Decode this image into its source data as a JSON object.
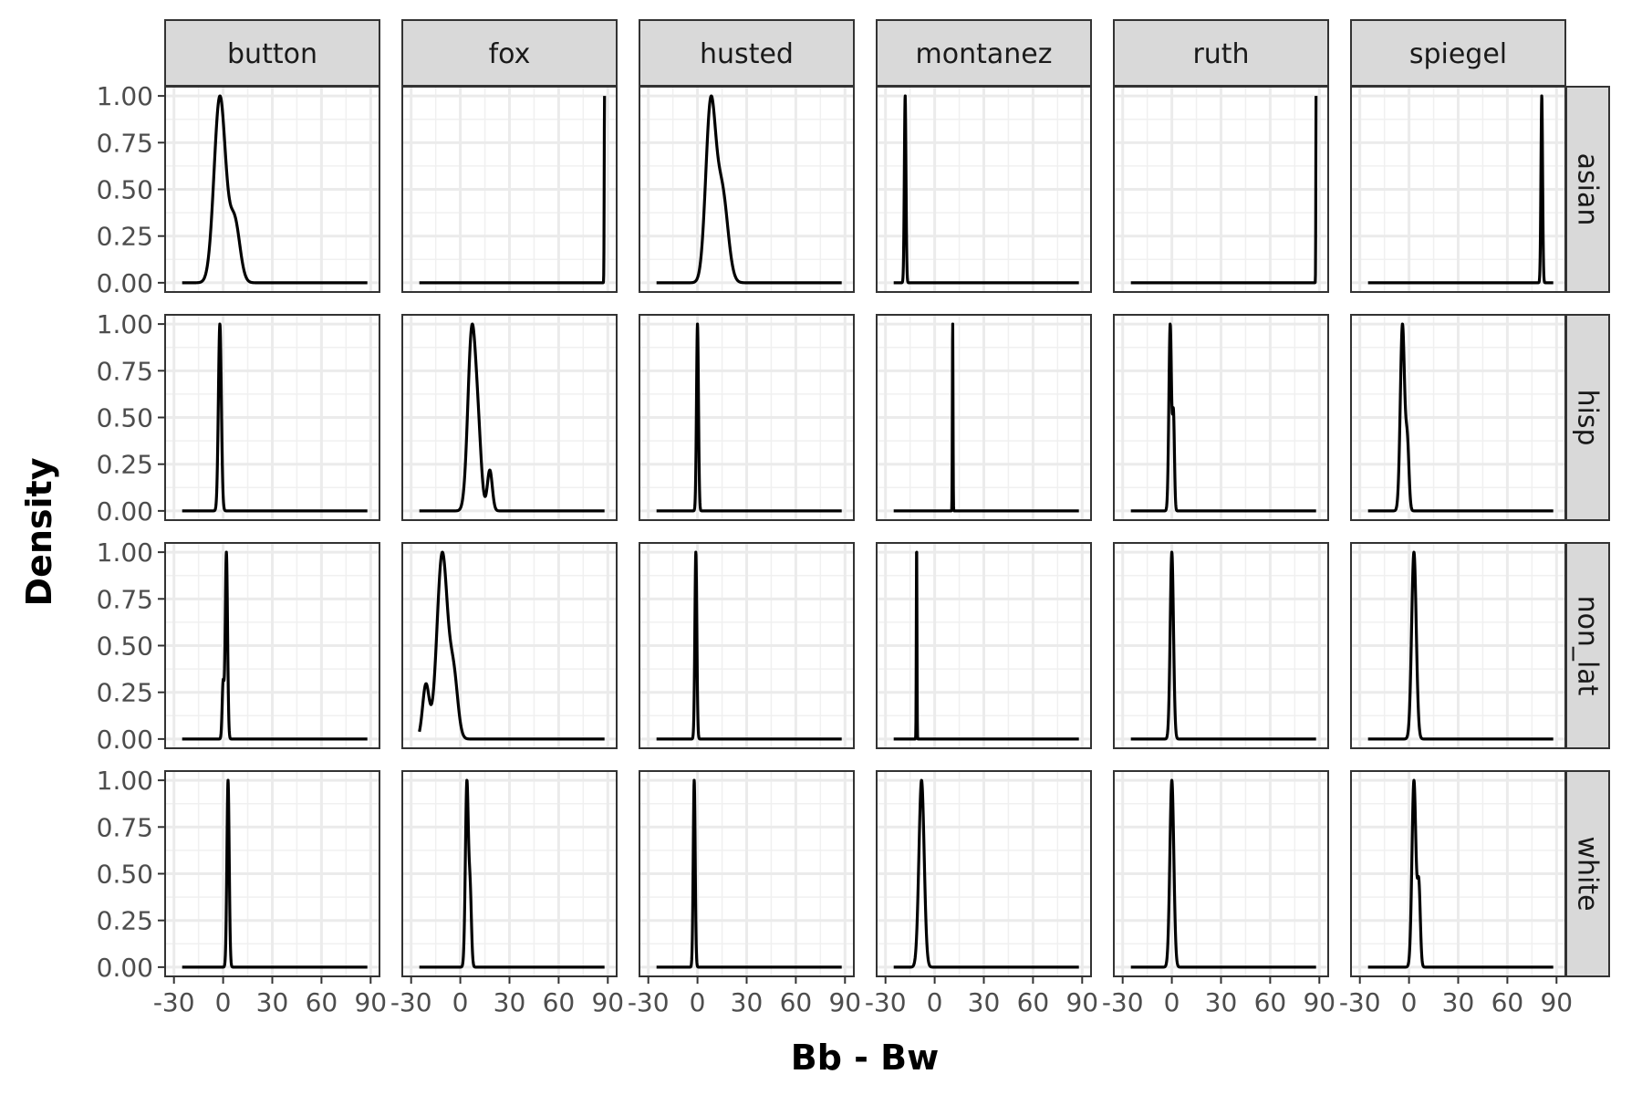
{
  "chart_data": {
    "type": "line",
    "facet_layout": "grid",
    "xlabel": "Bb - Bw",
    "ylabel": "Density",
    "x_ticks": [
      -30,
      0,
      30,
      60,
      90
    ],
    "x_tick_labels": [
      "-30",
      "0",
      "30",
      "60",
      "90"
    ],
    "y_ticks": [
      0,
      0.25,
      0.5,
      0.75,
      1.0
    ],
    "y_tick_labels": [
      "0.00",
      "0.25",
      "0.50",
      "0.75",
      "1.00"
    ],
    "xlim": [
      -30,
      90
    ],
    "ylim": [
      0,
      1
    ],
    "grid": true,
    "columns": [
      "button",
      "fox",
      "husted",
      "montanez",
      "ruth",
      "spiegel"
    ],
    "rows": [
      "asian",
      "hisp",
      "non_lat",
      "white"
    ],
    "line_color": "#000000",
    "strip_fill": "#d9d9d9",
    "panels": [
      {
        "col": "button",
        "row": "asian",
        "x_range": [
          -25,
          88
        ],
        "peaks": [
          {
            "x": -2,
            "h": 1.0,
            "s": 3.5
          },
          {
            "x": 7,
            "h": 0.33,
            "s": 3.2
          }
        ]
      },
      {
        "col": "fox",
        "row": "asian",
        "x_range": [
          -25,
          88
        ],
        "peaks": [
          {
            "x": 88,
            "h": 1.0,
            "s": 0.2
          }
        ]
      },
      {
        "col": "husted",
        "row": "asian",
        "x_range": [
          -25,
          88
        ],
        "peaks": [
          {
            "x": 8,
            "h": 0.92,
            "s": 3.0
          },
          {
            "x": 15,
            "h": 0.48,
            "s": 3.5
          }
        ]
      },
      {
        "col": "montanez",
        "row": "asian",
        "x_range": [
          -25,
          88
        ],
        "peaks": [
          {
            "x": -18,
            "h": 1.0,
            "s": 0.5
          }
        ]
      },
      {
        "col": "ruth",
        "row": "asian",
        "x_range": [
          -25,
          88
        ],
        "peaks": [
          {
            "x": 88,
            "h": 1.0,
            "s": 0.15
          }
        ]
      },
      {
        "col": "spiegel",
        "row": "asian",
        "x_range": [
          -25,
          88
        ],
        "peaks": [
          {
            "x": 81,
            "h": 1.0,
            "s": 0.5
          }
        ]
      },
      {
        "col": "button",
        "row": "hisp",
        "x_range": [
          -25,
          88
        ],
        "peaks": [
          {
            "x": -2,
            "h": 1.0,
            "s": 0.9
          }
        ]
      },
      {
        "col": "fox",
        "row": "hisp",
        "x_range": [
          -25,
          88
        ],
        "peaks": [
          {
            "x": 7,
            "h": 0.87,
            "s": 2.4
          },
          {
            "x": 11,
            "h": 0.3,
            "s": 2.0
          },
          {
            "x": 18,
            "h": 0.2,
            "s": 1.5
          }
        ]
      },
      {
        "col": "husted",
        "row": "hisp",
        "x_range": [
          -25,
          88
        ],
        "peaks": [
          {
            "x": 0,
            "h": 1.0,
            "s": 0.6
          }
        ]
      },
      {
        "col": "montanez",
        "row": "hisp",
        "x_range": [
          -25,
          88
        ],
        "peaks": [
          {
            "x": 11,
            "h": 1.0,
            "s": 0.2
          }
        ]
      },
      {
        "col": "ruth",
        "row": "hisp",
        "x_range": [
          -25,
          88
        ],
        "peaks": [
          {
            "x": -1,
            "h": 1.0,
            "s": 0.8
          },
          {
            "x": 1,
            "h": 0.5,
            "s": 0.6
          }
        ]
      },
      {
        "col": "spiegel",
        "row": "hisp",
        "x_range": [
          -25,
          88
        ],
        "peaks": [
          {
            "x": -4,
            "h": 1.0,
            "s": 1.3
          },
          {
            "x": -1,
            "h": 0.35,
            "s": 1.0
          }
        ]
      },
      {
        "col": "button",
        "row": "non_lat",
        "x_range": [
          -25,
          88
        ],
        "peaks": [
          {
            "x": 2,
            "h": 1.0,
            "s": 0.7
          },
          {
            "x": 0,
            "h": 0.3,
            "s": 0.6
          }
        ]
      },
      {
        "col": "fox",
        "row": "non_lat",
        "x_range": [
          -25,
          88
        ],
        "peaks": [
          {
            "x": -11,
            "h": 0.93,
            "s": 3.2
          },
          {
            "x": -21,
            "h": 0.27,
            "s": 2.0
          },
          {
            "x": -4,
            "h": 0.3,
            "s": 2.5
          }
        ]
      },
      {
        "col": "husted",
        "row": "non_lat",
        "x_range": [
          -25,
          88
        ],
        "peaks": [
          {
            "x": -1,
            "h": 1.0,
            "s": 0.6
          }
        ]
      },
      {
        "col": "montanez",
        "row": "non_lat",
        "x_range": [
          -25,
          88
        ],
        "peaks": [
          {
            "x": -11,
            "h": 1.0,
            "s": 0.2
          }
        ]
      },
      {
        "col": "ruth",
        "row": "non_lat",
        "x_range": [
          -25,
          88
        ],
        "peaks": [
          {
            "x": 0,
            "h": 1.0,
            "s": 1.0
          }
        ]
      },
      {
        "col": "spiegel",
        "row": "non_lat",
        "x_range": [
          -25,
          88
        ],
        "peaks": [
          {
            "x": 3,
            "h": 1.0,
            "s": 1.4
          }
        ]
      },
      {
        "col": "button",
        "row": "white",
        "x_range": [
          -25,
          88
        ],
        "peaks": [
          {
            "x": 3,
            "h": 1.0,
            "s": 0.7
          }
        ]
      },
      {
        "col": "fox",
        "row": "white",
        "x_range": [
          -25,
          88
        ],
        "peaks": [
          {
            "x": 4,
            "h": 1.0,
            "s": 0.9
          },
          {
            "x": 6,
            "h": 0.4,
            "s": 0.8
          }
        ]
      },
      {
        "col": "husted",
        "row": "white",
        "x_range": [
          -25,
          88
        ],
        "peaks": [
          {
            "x": -2,
            "h": 1.0,
            "s": 0.6
          }
        ]
      },
      {
        "col": "montanez",
        "row": "white",
        "x_range": [
          -25,
          88
        ],
        "peaks": [
          {
            "x": -8,
            "h": 1.0,
            "s": 1.6
          }
        ]
      },
      {
        "col": "ruth",
        "row": "white",
        "x_range": [
          -25,
          88
        ],
        "peaks": [
          {
            "x": 0,
            "h": 1.0,
            "s": 1.2
          }
        ]
      },
      {
        "col": "spiegel",
        "row": "white",
        "x_range": [
          -25,
          88
        ],
        "peaks": [
          {
            "x": 3,
            "h": 0.93,
            "s": 1.2
          },
          {
            "x": 6,
            "h": 0.4,
            "s": 0.9
          }
        ]
      }
    ]
  }
}
